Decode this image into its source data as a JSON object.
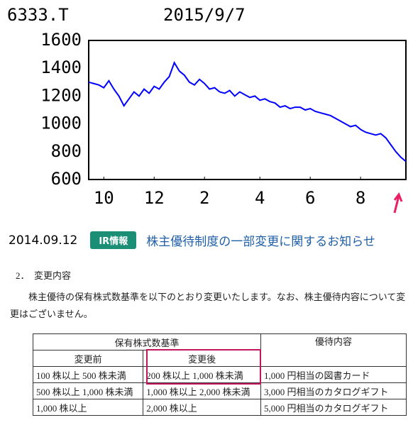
{
  "chart_data": {
    "type": "line",
    "title": "6333.T",
    "subtitle": "2015/9/7",
    "values": [
      1300,
      1290,
      1280,
      1260,
      1310,
      1250,
      1200,
      1130,
      1180,
      1230,
      1200,
      1250,
      1220,
      1270,
      1250,
      1300,
      1340,
      1440,
      1380,
      1350,
      1300,
      1280,
      1320,
      1290,
      1250,
      1260,
      1230,
      1220,
      1240,
      1200,
      1230,
      1210,
      1190,
      1200,
      1170,
      1180,
      1160,
      1150,
      1120,
      1130,
      1110,
      1120,
      1120,
      1100,
      1110,
      1090,
      1080,
      1070,
      1060,
      1040,
      1020,
      1000,
      980,
      990,
      960,
      940,
      930,
      920,
      930,
      900,
      850,
      800,
      760,
      730
    ],
    "color": "#0000ff",
    "xlim": [
      0,
      63
    ],
    "xticks": [
      {
        "value": 3,
        "label": "10"
      },
      {
        "value": 13,
        "label": "12"
      },
      {
        "value": 23,
        "label": "2"
      },
      {
        "value": 34,
        "label": "4"
      },
      {
        "value": 44,
        "label": "6"
      },
      {
        "value": 54,
        "label": "8"
      }
    ],
    "ylim": [
      600,
      1600
    ],
    "yticks": [
      600,
      800,
      1000,
      1200,
      1400,
      1600
    ],
    "grid": false
  },
  "news": {
    "date": "2014.09.12",
    "badge": "IR情報",
    "link": "株主優待制度の一部変更に関するお知らせ"
  },
  "section": {
    "heading": "2．　変更内容",
    "paragraph": "株主優待の保有株式数基準を以下のとおり変更いたします。なお、株主優待内容について変更はございません。"
  },
  "table": {
    "header": [
      "保有株式数基準",
      "優待内容"
    ],
    "subheader": [
      "変更前",
      "変更後"
    ],
    "rows": [
      [
        "100 株以上 500 株未満",
        "200 株以上 1,000 株未満",
        "1,000 円相当の図書カード"
      ],
      [
        "500 株以上 1,000 株未満",
        "1,000 株以上 2,000 株未満",
        "3,000 円相当のカタログギフト"
      ],
      [
        "1,000 株以上",
        "2,000 株以上",
        "5,000 円相当のカタログギフト"
      ]
    ]
  }
}
